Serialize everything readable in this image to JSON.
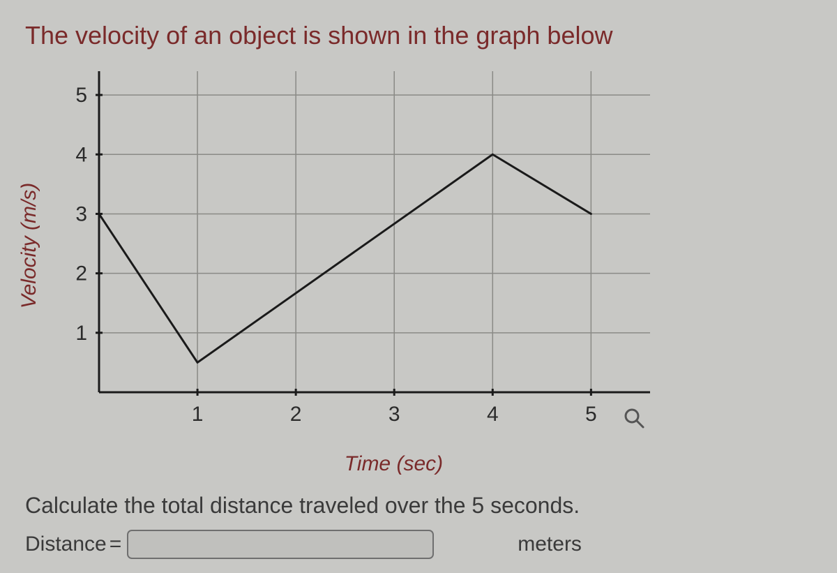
{
  "prompt": "The velocity of an object is shown in the graph below",
  "chart": {
    "type": "line",
    "xlabel": "Time (sec)",
    "ylabel": "Velocity (m/s)",
    "xlim": [
      0,
      5.6
    ],
    "ylim": [
      0,
      5.4
    ],
    "xticks": [
      1,
      2,
      3,
      4,
      5
    ],
    "yticks": [
      1,
      2,
      3,
      4,
      5
    ],
    "xtick_labels": [
      "1",
      "2",
      "3",
      "4",
      "5"
    ],
    "ytick_labels": [
      "1",
      "2",
      "3",
      "4",
      "5"
    ],
    "data_points": [
      {
        "x": 0,
        "y": 3
      },
      {
        "x": 1,
        "y": 0.5
      },
      {
        "x": 4,
        "y": 4
      },
      {
        "x": 5,
        "y": 3
      }
    ],
    "line_color": "#1a1a1a",
    "line_width": 3,
    "axis_color": "#1a1a1a",
    "axis_width": 3,
    "grid_color": "#8a8a86",
    "grid_width": 1.5,
    "tick_length": 10,
    "background_color": "#c8c8c5",
    "tick_label_fontsize": 30,
    "tick_label_color": "#2b2b2b",
    "axis_label_fontsize": 30,
    "axis_label_color": "#7a2a2a"
  },
  "instruction": "Calculate the total distance traveled over the 5 seconds.",
  "answer": {
    "label": "Distance",
    "equals": "=",
    "value": "",
    "unit": "meters"
  },
  "magnifier_icon": "magnifier-icon"
}
